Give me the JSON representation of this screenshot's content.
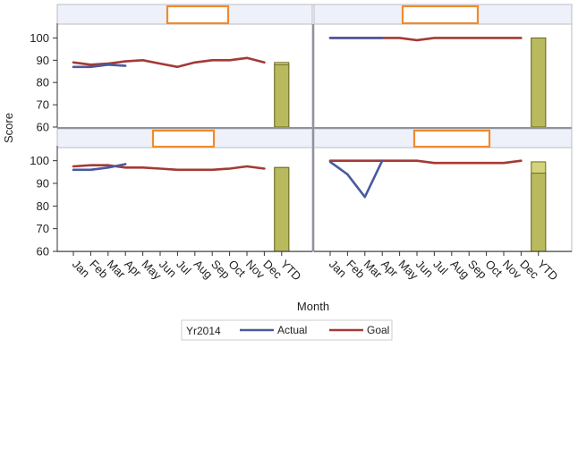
{
  "chart_data": {
    "type": "line",
    "layout": "2x2 panel grid with a YTD bar at the end of each panel",
    "title": "",
    "xlabel": "Month",
    "ylabel": "Score",
    "ylim": [
      60,
      105
    ],
    "yticks": [
      60,
      70,
      80,
      90,
      100
    ],
    "categories": [
      "Jan",
      "Feb",
      "Mar",
      "Apr",
      "May",
      "Jun",
      "Jul",
      "Aug",
      "Sep",
      "Oct",
      "Nov",
      "Dec",
      "YTD"
    ],
    "grid": false,
    "legend": {
      "position": "bottom",
      "title": "Yr2014",
      "entries": [
        {
          "name": "Actual",
          "color": "#4a5a9e"
        },
        {
          "name": "Goal",
          "color": "#a33a35"
        }
      ]
    },
    "colors": {
      "actual": "#4a5a9e",
      "goal": "#a33a35",
      "bar_fill": "#b9ba5e",
      "bar_fill_light": "#d3d37c",
      "bar_stroke": "#6b6a22",
      "redaction_box": "#f08b2c",
      "panel_header": "#eef1fa",
      "panel_border": "#b9bdc6"
    },
    "panels": [
      {
        "position": "top-left",
        "header_label": "",
        "series": [
          {
            "name": "Actual",
            "values": [
              87,
              87,
              88,
              87.5,
              null,
              null,
              null,
              null,
              null,
              null,
              null,
              null
            ]
          },
          {
            "name": "Goal",
            "values": [
              89,
              88,
              88.5,
              89.5,
              90,
              88.5,
              87,
              89,
              90,
              90,
              91,
              89
            ]
          }
        ],
        "ytd": {
          "actual": 88,
          "goal": 89
        }
      },
      {
        "position": "top-right",
        "header_label": "",
        "series": [
          {
            "name": "Actual",
            "values": [
              100,
              100,
              100,
              100,
              null,
              null,
              null,
              null,
              null,
              null,
              null,
              null
            ]
          },
          {
            "name": "Goal",
            "values": [
              100,
              100,
              100,
              100,
              100,
              99,
              100,
              100,
              100,
              100,
              100,
              100
            ]
          }
        ],
        "ytd": {
          "actual": 100,
          "goal": 100
        }
      },
      {
        "position": "bottom-left",
        "header_label": "",
        "series": [
          {
            "name": "Actual",
            "values": [
              96,
              96,
              97,
              98.5,
              null,
              null,
              null,
              null,
              null,
              null,
              null,
              null
            ]
          },
          {
            "name": "Goal",
            "values": [
              97.5,
              98,
              98,
              97,
              97,
              96.5,
              96,
              96,
              96,
              96.5,
              97.5,
              96.5
            ]
          }
        ],
        "ytd": {
          "actual": 97,
          "goal": 97
        }
      },
      {
        "position": "bottom-right",
        "header_label": "",
        "series": [
          {
            "name": "Actual",
            "values": [
              99.5,
              94,
              84,
              100,
              null,
              null,
              null,
              null,
              null,
              null,
              null,
              null
            ]
          },
          {
            "name": "Goal",
            "values": [
              100,
              100,
              100,
              100,
              100,
              100,
              99,
              99,
              99,
              99,
              99,
              100
            ]
          }
        ],
        "ytd": {
          "actual": 94.5,
          "goal": 99.5
        }
      }
    ]
  }
}
